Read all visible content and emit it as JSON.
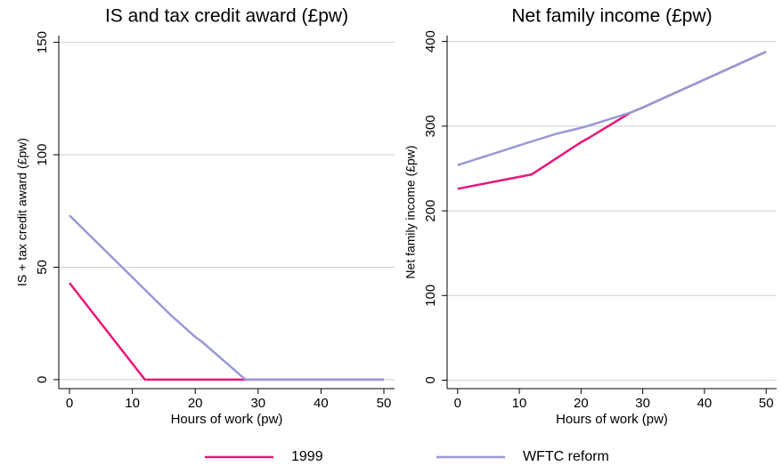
{
  "chart_data": [
    {
      "type": "line",
      "title": "IS and tax credit award (£pw)",
      "x_label": "Hours of work (pw)",
      "y_label": "IS + tax credit award (£pw)",
      "x": [
        0,
        12,
        16,
        20,
        21,
        28,
        30,
        40,
        50
      ],
      "series": [
        {
          "name": "1999",
          "color": "#e8177a",
          "values": [
            43,
            0,
            0,
            0,
            0,
            0,
            0,
            0,
            0
          ]
        },
        {
          "name": "WFTC reform",
          "color": "#9a98d6",
          "values": [
            73,
            40,
            29,
            19,
            17,
            0,
            0,
            0,
            0
          ]
        }
      ],
      "xlim": [
        -1.7,
        51.7
      ],
      "xticks": [
        0,
        10,
        20,
        30,
        40,
        50
      ],
      "ylim": [
        -4,
        153
      ],
      "yticks": [
        0,
        50,
        100,
        150
      ],
      "grid": true
    },
    {
      "type": "line",
      "title": "Net family income (£pw)",
      "x_label": "Hours of work (pw)",
      "y_label": "Net family income (£pw)",
      "x": [
        0,
        12,
        16,
        20,
        21,
        28,
        30,
        40,
        50
      ],
      "series": [
        {
          "color": "#e8177a",
          "values": [
            226,
            243,
            262,
            281,
            285,
            316,
            322,
            355,
            388
          ]
        },
        {
          "color": "#9a98d6",
          "values": [
            254,
            282,
            291,
            298,
            300,
            316,
            322,
            355,
            388
          ]
        }
      ],
      "xlim": [
        -1.7,
        51.7
      ],
      "xticks": [
        0,
        10,
        20,
        30,
        40,
        50
      ],
      "ylim": [
        -10,
        407
      ],
      "yticks": [
        0,
        100,
        200,
        300,
        400
      ],
      "grid": true
    }
  ]
}
